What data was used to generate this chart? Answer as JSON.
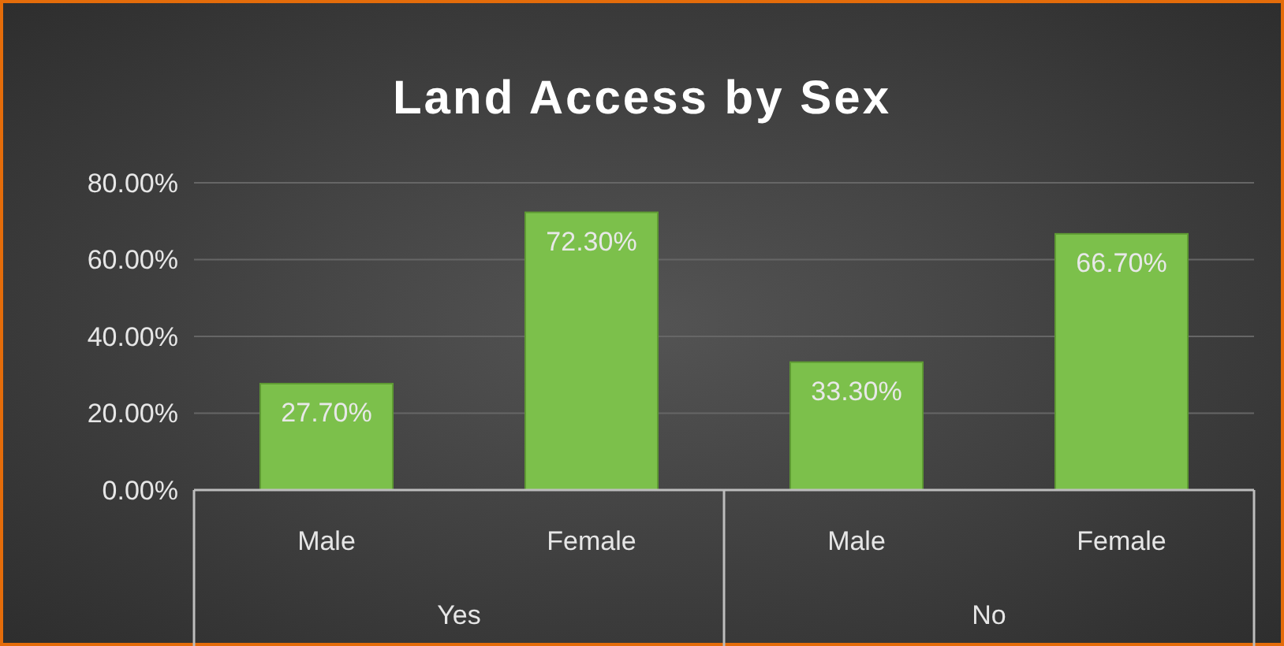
{
  "chart_data": {
    "type": "bar",
    "title": "Land Access by Sex",
    "categories": [
      "Male",
      "Female",
      "Male",
      "Female"
    ],
    "values": [
      27.7,
      72.3,
      33.3,
      66.7
    ],
    "value_labels": [
      "27.70%",
      "72.30%",
      "33.30%",
      "66.70%"
    ],
    "color": "#7cc04b",
    "ylim": [
      0,
      80
    ],
    "yticks": [
      {
        "value": 0,
        "label": "0.00%"
      },
      {
        "value": 20,
        "label": "20.00%"
      },
      {
        "value": 40,
        "label": "40.00%"
      },
      {
        "value": 60,
        "label": "60.00%"
      },
      {
        "value": 80,
        "label": "80.00%"
      }
    ],
    "grid": "y",
    "annotations": [
      "Yes",
      "No"
    ]
  }
}
